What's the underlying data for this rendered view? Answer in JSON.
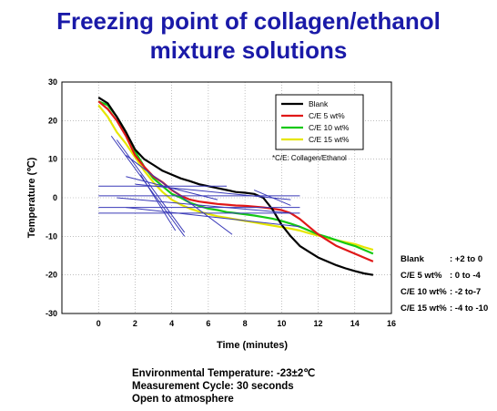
{
  "title_line1": "Freezing point of collagen/ethanol",
  "title_line2": "mixture solutions",
  "chart_data": {
    "type": "line",
    "xlabel": "Time (minutes)",
    "ylabel": "Temperature (℃)",
    "xlim": [
      -2,
      16
    ],
    "ylim": [
      -30,
      30
    ],
    "xticks": [
      "0",
      "2",
      "4",
      "6",
      "8",
      "10",
      "12",
      "14",
      "16"
    ],
    "yticks": [
      "30",
      "20",
      "10",
      "0",
      "-10",
      "-20",
      "-30"
    ],
    "grid": true,
    "legend_position": "top-right",
    "legend_note": "*C/E: Collagen/Ethanol",
    "series": [
      {
        "name": "Blank",
        "color": "#000000",
        "x": [
          0,
          0.5,
          1,
          1.5,
          2,
          2.5,
          3,
          3.5,
          4,
          4.5,
          5,
          5.5,
          6,
          6.5,
          7,
          7.5,
          8,
          8.5,
          9,
          9.5,
          10,
          10.5,
          11,
          11.5,
          12,
          12.5,
          13,
          13.5,
          14,
          14.5,
          15
        ],
        "y": [
          26,
          24.5,
          21,
          17,
          12.5,
          10,
          8.5,
          7,
          6,
          5,
          4.3,
          3.5,
          3,
          2.5,
          2,
          1.5,
          1.3,
          1,
          0,
          -3,
          -7,
          -10,
          -12.5,
          -14,
          -15.5,
          -16.5,
          -17.5,
          -18.3,
          -19,
          -19.6,
          -20
        ]
      },
      {
        "name": "C/E 5 wt%",
        "color": "#e01818",
        "x": [
          0,
          0.5,
          1,
          1.5,
          2,
          2.5,
          3,
          3.5,
          4,
          4.5,
          5,
          5.5,
          6,
          6.5,
          7,
          7.5,
          8,
          8.5,
          9,
          9.5,
          10,
          10.5,
          11,
          11.5,
          12,
          12.5,
          13,
          13.5,
          14,
          14.5,
          15
        ],
        "y": [
          25,
          23,
          20,
          16,
          11,
          8,
          5.5,
          4,
          2,
          0.5,
          -0.5,
          -1,
          -1.3,
          -1.6,
          -1.8,
          -2,
          -2.1,
          -2.3,
          -2.5,
          -2.8,
          -3.2,
          -4,
          -5.5,
          -7.5,
          -9.5,
          -11,
          -12.5,
          -13.5,
          -14.5,
          -15.5,
          -16.5
        ]
      },
      {
        "name": "C/E 10 wt%",
        "color": "#14c814",
        "x": [
          0,
          0.5,
          1,
          1.5,
          2,
          2.5,
          3,
          3.5,
          4,
          4.5,
          5,
          5.5,
          6,
          6.5,
          7,
          7.5,
          8,
          8.5,
          9,
          9.5,
          10,
          10.5,
          11,
          11.5,
          12,
          12.5,
          13,
          13.5,
          14,
          14.5,
          15
        ],
        "y": [
          25,
          24,
          21,
          17,
          12,
          8,
          5,
          3,
          1,
          0,
          -1.3,
          -2.1,
          -2.8,
          -3.2,
          -3.7,
          -4,
          -4.3,
          -4.6,
          -5,
          -5.4,
          -6,
          -6.7,
          -7.5,
          -8.5,
          -9.5,
          -10.2,
          -11,
          -11.8,
          -12.5,
          -13.5,
          -14.5
        ]
      },
      {
        "name": "C/E 15 wt%",
        "color": "#e6e600",
        "x": [
          0,
          0.5,
          1,
          1.5,
          2,
          2.5,
          3,
          3.5,
          4,
          4.5,
          5,
          5.5,
          6,
          6.5,
          7,
          7.5,
          8,
          8.5,
          9,
          9.5,
          10,
          10.5,
          11,
          11.5,
          12,
          12.5,
          13,
          13.5,
          14,
          14.5,
          15
        ],
        "y": [
          24,
          21,
          17,
          14,
          10.5,
          7,
          4,
          1.5,
          -0.5,
          -1.8,
          -2.8,
          -3.6,
          -4.2,
          -4.8,
          -5.2,
          -5.6,
          -6,
          -6.4,
          -6.8,
          -7.2,
          -7.6,
          -8,
          -8.5,
          -9.2,
          -9.8,
          -10.5,
          -11,
          -11.5,
          -12,
          -12.8,
          -13.5
        ]
      }
    ],
    "guide_lines_color": "#3a3ab8",
    "guide_lines": [
      {
        "x": [
          0,
          7
        ],
        "y": [
          3,
          3
        ]
      },
      {
        "x": [
          0,
          11
        ],
        "y": [
          0.5,
          0.5
        ]
      },
      {
        "x": [
          0,
          11
        ],
        "y": [
          -2.5,
          -2.5
        ]
      },
      {
        "x": [
          0,
          11
        ],
        "y": [
          -4,
          -4
        ]
      },
      {
        "x": [
          1.5,
          6.5
        ],
        "y": [
          5.5,
          -0.5
        ]
      },
      {
        "x": [
          2,
          10.5
        ],
        "y": [
          3.5,
          -0.5
        ]
      },
      {
        "x": [
          1,
          10.5
        ],
        "y": [
          0,
          -4
        ]
      },
      {
        "x": [
          1.5,
          11
        ],
        "y": [
          -2.5,
          -7.5
        ]
      },
      {
        "x": [
          8.5,
          10.5
        ],
        "y": [
          2,
          -2
        ]
      },
      {
        "x": [
          0.7,
          4.7
        ],
        "y": [
          16,
          -10
        ]
      },
      {
        "x": [
          1,
          4.7
        ],
        "y": [
          15,
          -9
        ]
      },
      {
        "x": [
          1.5,
          7.3
        ],
        "y": [
          11,
          -9.5
        ]
      },
      {
        "x": [
          2.3,
          4.2
        ],
        "y": [
          6,
          -8.5
        ]
      }
    ]
  },
  "freezing_ranges": [
    {
      "label": "Blank",
      "value": ": +2 to 0"
    },
    {
      "label": "C/E 5 wt%",
      "value": ":  0 to -4"
    },
    {
      "label": "C/E 10 wt%",
      "value": ": -2 to-7"
    },
    {
      "label": "C/E 15 wt%",
      "value": ": -4 to -10"
    }
  ],
  "footer": {
    "line1": "Environmental Temperature: -23±2℃",
    "line2": "Measurement Cycle: 30 seconds",
    "line3": "Open to atmosphere"
  }
}
